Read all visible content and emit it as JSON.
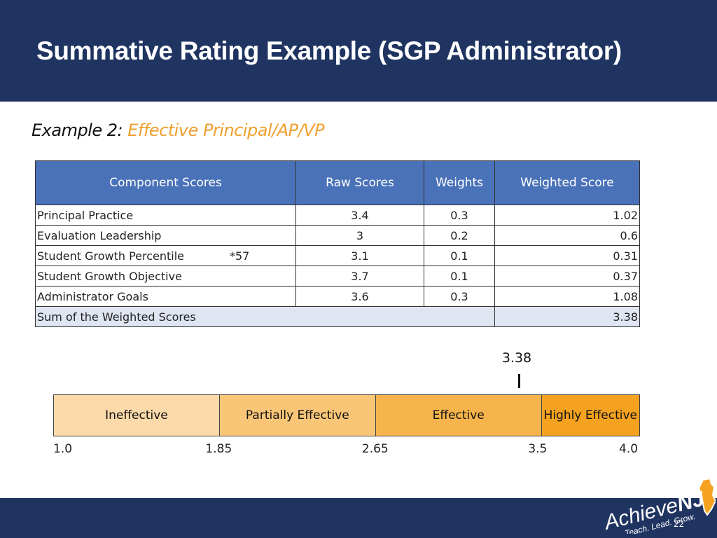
{
  "title": "Summative Rating Example (SGP Administrator)",
  "subtitle": {
    "prefix": "Example 2:",
    "highlight": "Effective Principal/AP/VP"
  },
  "table": {
    "headers": [
      "Component Scores",
      "Raw Scores",
      "Weights",
      "Weighted Score"
    ],
    "rows": [
      {
        "component": "Principal Practice",
        "note": "",
        "raw": "3.4",
        "weight": "0.3",
        "weighted": "1.02"
      },
      {
        "component": "Evaluation Leadership",
        "note": "",
        "raw": "3",
        "weight": "0.2",
        "weighted": "0.6"
      },
      {
        "component": "Student Growth Percentile",
        "note": "*57",
        "raw": "3.1",
        "weight": "0.1",
        "weighted": "0.31"
      },
      {
        "component": "Student Growth Objective",
        "note": "",
        "raw": "3.7",
        "weight": "0.1",
        "weighted": "0.37"
      },
      {
        "component": "Administrator Goals",
        "note": "",
        "raw": "3.6",
        "weight": "0.3",
        "weighted": "1.08"
      }
    ],
    "sum_label": "Sum of the Weighted Scores",
    "sum_value": "3.38"
  },
  "scale": {
    "marker_label": "3.38",
    "marker_value": 3.38,
    "min": 1.0,
    "max": 4.0,
    "bands": [
      {
        "label": "Ineffective",
        "from": 1.0,
        "to": 1.85,
        "color": "#fbd9a8"
      },
      {
        "label": "Partially Effective",
        "from": 1.85,
        "to": 2.65,
        "color": "#f9c678"
      },
      {
        "label": "Effective",
        "from": 2.65,
        "to": 3.5,
        "color": "#f7b44c"
      },
      {
        "label": "Highly Effective",
        "from": 3.5,
        "to": 4.0,
        "color": "#f4a21f"
      }
    ],
    "ticks": [
      {
        "label": "1.0",
        "value": 1.0
      },
      {
        "label": "1.85",
        "value": 1.85
      },
      {
        "label": "2.65",
        "value": 2.65
      },
      {
        "label": "3.5",
        "value": 3.5
      },
      {
        "label": "4.0",
        "value": 4.0
      }
    ]
  },
  "footer": {
    "logo_main": "Achieve",
    "logo_accent": "NJ",
    "logo_tagline": "Teach. Lead. Grow.",
    "page_number": "22"
  },
  "colors": {
    "header_bg": "#1f3461",
    "table_header_bg": "#4a72b8",
    "sum_row_bg": "#dfe5f1",
    "subtitle_highlight": "#f0a030"
  }
}
